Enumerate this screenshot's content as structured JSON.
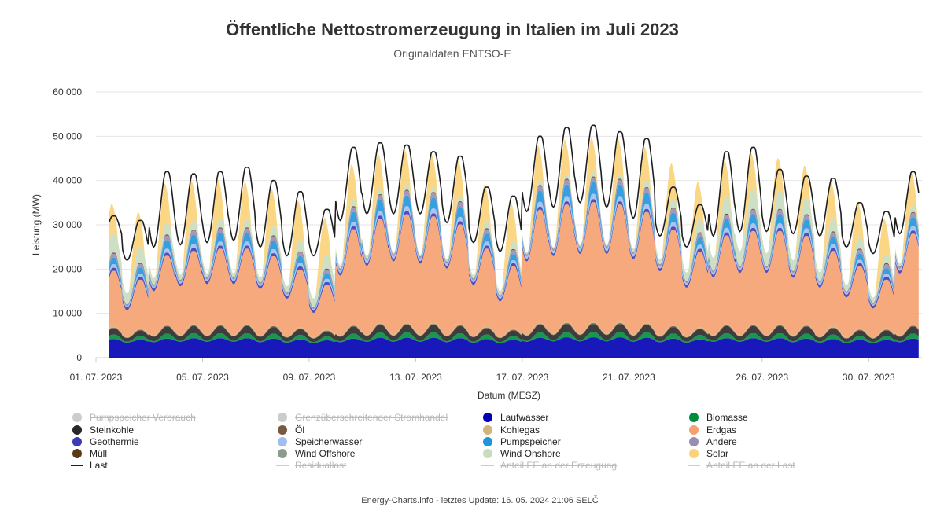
{
  "title": "Öffentliche Nettostromerzeugung in Italien im Juli 2023",
  "subtitle": "Originaldaten ENTSO-E",
  "footer": "Energy-Charts.info - letztes Update: 16. 05. 2024 21:06 SELČ",
  "chart_data": {
    "type": "area",
    "stacked": true,
    "xlabel": "Datum (MESZ)",
    "ylabel": "Leistung (MW)",
    "ylim": [
      0,
      60000
    ],
    "yticks": [
      0,
      10000,
      20000,
      30000,
      40000,
      50000,
      60000
    ],
    "ytick_labels": [
      "0",
      "10 000",
      "20 000",
      "30 000",
      "40 000",
      "50 000",
      "60 000"
    ],
    "xlim": [
      "2023-07-01",
      "2023-08-01"
    ],
    "xticks": [
      "2023-07-01",
      "2023-07-05",
      "2023-07-09",
      "2023-07-13",
      "2023-07-17",
      "2023-07-21",
      "2023-07-26",
      "2023-07-30"
    ],
    "xtick_labels": [
      "01. 07. 2023",
      "05. 07. 2023",
      "09. 07. 2023",
      "13. 07. 2023",
      "17. 07. 2023",
      "21. 07. 2023",
      "26. 07. 2023",
      "30. 07. 2023"
    ],
    "grid": true,
    "legend_position": "bottom",
    "resolution": "daily min / max (approximate)",
    "days": [
      "2023-07-01",
      "2023-07-02",
      "2023-07-03",
      "2023-07-04",
      "2023-07-05",
      "2023-07-06",
      "2023-07-07",
      "2023-07-08",
      "2023-07-09",
      "2023-07-10",
      "2023-07-11",
      "2023-07-12",
      "2023-07-13",
      "2023-07-14",
      "2023-07-15",
      "2023-07-16",
      "2023-07-17",
      "2023-07-18",
      "2023-07-19",
      "2023-07-20",
      "2023-07-21",
      "2023-07-22",
      "2023-07-23",
      "2023-07-24",
      "2023-07-25",
      "2023-07-26",
      "2023-07-27",
      "2023-07-28",
      "2023-07-29",
      "2023-07-30",
      "2023-07-31"
    ],
    "series": [
      {
        "name": "Pumpspeicher Verbrauch",
        "color": "#c8c8c8",
        "visible": false
      },
      {
        "name": "Grenzüberschreitender Stromhandel",
        "color": "#c8c8c8",
        "visible": false
      },
      {
        "name": "Laufwasser",
        "color": "#0000b4",
        "visible": true,
        "min": [
          3500,
          3400,
          3500,
          3600,
          3600,
          3600,
          3500,
          3400,
          3300,
          3500,
          3600,
          3600,
          3600,
          3500,
          3400,
          3300,
          3600,
          3700,
          3700,
          3700,
          3600,
          3500,
          3400,
          3600,
          3600,
          3600,
          3500,
          3400,
          3300,
          3300,
          3500
        ],
        "max": [
          4200,
          4000,
          4300,
          4400,
          4400,
          4400,
          4300,
          4100,
          3900,
          4300,
          4500,
          4500,
          4500,
          4400,
          4200,
          4000,
          4500,
          4600,
          4600,
          4600,
          4500,
          4300,
          4100,
          4400,
          4400,
          4400,
          4300,
          4200,
          4000,
          4000,
          4300
        ]
      },
      {
        "name": "Biomasse",
        "color": "#008c3c",
        "visible": true,
        "min": [
          200,
          200,
          200,
          200,
          200,
          200,
          200,
          200,
          200,
          200,
          200,
          200,
          200,
          200,
          200,
          200,
          200,
          200,
          200,
          200,
          200,
          200,
          200,
          200,
          200,
          200,
          200,
          200,
          200,
          200,
          200
        ],
        "max": [
          1000,
          900,
          1100,
          1100,
          1100,
          1100,
          1100,
          1000,
          900,
          1100,
          1200,
          1200,
          1200,
          1100,
          1000,
          900,
          1200,
          1200,
          1200,
          1200,
          1200,
          1100,
          1000,
          1100,
          1100,
          1100,
          1100,
          1000,
          900,
          900,
          1100
        ]
      },
      {
        "name": "Steinkohle",
        "color": "#282828",
        "visible": true,
        "min": [
          900,
          800,
          1000,
          1000,
          1000,
          1000,
          1000,
          900,
          800,
          1000,
          1100,
          1100,
          1100,
          1100,
          1000,
          900,
          1100,
          1200,
          1200,
          1200,
          1100,
          1000,
          900,
          1000,
          1000,
          1000,
          1000,
          900,
          800,
          800,
          1000
        ],
        "max": [
          1400,
          1200,
          1600,
          1600,
          1600,
          1600,
          1500,
          1300,
          1100,
          1600,
          1700,
          1700,
          1700,
          1600,
          1400,
          1200,
          1700,
          1800,
          1800,
          1800,
          1700,
          1500,
          1300,
          1600,
          1600,
          1600,
          1600,
          1400,
          1200,
          1200,
          1600
        ]
      },
      {
        "name": "Öl",
        "color": "#785a41",
        "visible": true,
        "min": [
          100,
          100,
          100,
          100,
          100,
          100,
          100,
          100,
          100,
          100,
          100,
          100,
          100,
          100,
          100,
          100,
          100,
          100,
          100,
          100,
          100,
          100,
          100,
          100,
          100,
          100,
          100,
          100,
          100,
          100,
          100
        ],
        "max": [
          200,
          200,
          200,
          200,
          200,
          200,
          200,
          200,
          200,
          200,
          200,
          200,
          200,
          200,
          200,
          200,
          200,
          200,
          200,
          200,
          200,
          200,
          200,
          200,
          200,
          200,
          200,
          200,
          200,
          200,
          200
        ]
      },
      {
        "name": "Kohlegas",
        "color": "#d2b478",
        "visible": true,
        "min": [
          200,
          200,
          200,
          200,
          200,
          200,
          200,
          200,
          200,
          200,
          200,
          200,
          200,
          200,
          200,
          200,
          200,
          200,
          200,
          200,
          200,
          200,
          200,
          200,
          200,
          200,
          200,
          200,
          200,
          200,
          200
        ],
        "max": [
          300,
          300,
          300,
          300,
          300,
          300,
          300,
          300,
          300,
          300,
          300,
          300,
          300,
          300,
          300,
          300,
          300,
          300,
          300,
          300,
          300,
          300,
          300,
          300,
          300,
          300,
          300,
          300,
          300,
          300,
          300
        ]
      },
      {
        "name": "Erdgas",
        "color": "#f5a06e",
        "visible": true,
        "min": [
          7500,
          6000,
          10000,
          11000,
          11500,
          11500,
          10500,
          8500,
          5500,
          13500,
          15500,
          16500,
          16000,
          15000,
          11500,
          8000,
          16500,
          17500,
          18000,
          18000,
          17000,
          14500,
          11000,
          13000,
          14000,
          14000,
          13000,
          11000,
          9000,
          6500,
          14000
        ],
        "max": [
          12500,
          11000,
          15500,
          16500,
          17000,
          17000,
          15500,
          13000,
          10000,
          21500,
          23500,
          24500,
          24000,
          22500,
          17500,
          14000,
          25500,
          26500,
          27000,
          26500,
          25000,
          21500,
          17000,
          20000,
          21000,
          21000,
          20000,
          17000,
          14000,
          11000,
          20500
        ]
      },
      {
        "name": "Geothermie",
        "color": "#3c3cb4",
        "visible": true,
        "min": [
          600,
          600,
          600,
          600,
          600,
          600,
          600,
          600,
          600,
          600,
          600,
          600,
          600,
          600,
          600,
          600,
          600,
          600,
          600,
          600,
          600,
          600,
          600,
          600,
          600,
          600,
          600,
          600,
          600,
          600,
          600
        ],
        "max": [
          700,
          700,
          700,
          700,
          700,
          700,
          700,
          700,
          700,
          700,
          700,
          700,
          700,
          700,
          700,
          700,
          700,
          700,
          700,
          700,
          700,
          700,
          700,
          700,
          700,
          700,
          700,
          700,
          700,
          700,
          700
        ]
      },
      {
        "name": "Speicherwasser",
        "color": "#a0bef0",
        "visible": true,
        "min": [
          300,
          250,
          400,
          400,
          400,
          400,
          400,
          300,
          250,
          500,
          550,
          550,
          550,
          500,
          400,
          300,
          550,
          600,
          600,
          600,
          550,
          500,
          400,
          450,
          450,
          450,
          450,
          400,
          300,
          250,
          450
        ],
        "max": [
          800,
          700,
          900,
          900,
          900,
          900,
          900,
          800,
          700,
          1000,
          1100,
          1100,
          1100,
          1000,
          900,
          700,
          1100,
          1200,
          1200,
          1200,
          1100,
          1000,
          900,
          1000,
          1000,
          1000,
          1000,
          900,
          800,
          700,
          1000
        ]
      },
      {
        "name": "Pumpspeicher",
        "color": "#1e96dc",
        "visible": true,
        "min": [
          0,
          0,
          0,
          0,
          0,
          0,
          0,
          0,
          0,
          0,
          0,
          0,
          0,
          0,
          0,
          0,
          0,
          0,
          0,
          0,
          0,
          0,
          0,
          0,
          0,
          0,
          0,
          0,
          0,
          0,
          0
        ],
        "max": [
          1500,
          1300,
          2000,
          2000,
          2000,
          2000,
          1900,
          1500,
          1200,
          2200,
          2400,
          2400,
          2400,
          2200,
          1800,
          1400,
          2500,
          2600,
          2600,
          2600,
          2500,
          2100,
          1700,
          2000,
          2100,
          2100,
          2000,
          1700,
          1400,
          1200,
          2000
        ]
      },
      {
        "name": "Andere",
        "color": "#9b8cb4",
        "visible": true,
        "min": [
          300,
          300,
          300,
          300,
          300,
          300,
          300,
          300,
          300,
          300,
          300,
          300,
          300,
          300,
          300,
          300,
          300,
          300,
          300,
          300,
          300,
          300,
          300,
          300,
          300,
          300,
          300,
          300,
          300,
          300,
          300
        ],
        "max": [
          900,
          900,
          1000,
          1000,
          1000,
          1000,
          1000,
          900,
          900,
          1100,
          1100,
          1100,
          1100,
          1100,
          1000,
          900,
          1100,
          1100,
          1100,
          1100,
          1100,
          1000,
          900,
          1000,
          1000,
          1000,
          1000,
          900,
          900,
          900,
          1000
        ]
      },
      {
        "name": "Müll",
        "color": "#5a3c14",
        "visible": true,
        "min": [
          100,
          100,
          100,
          100,
          100,
          100,
          100,
          100,
          100,
          100,
          100,
          100,
          100,
          100,
          100,
          100,
          100,
          100,
          100,
          100,
          100,
          100,
          100,
          100,
          100,
          100,
          100,
          100,
          100,
          100,
          100
        ],
        "max": [
          200,
          200,
          200,
          200,
          200,
          200,
          200,
          200,
          200,
          200,
          200,
          200,
          200,
          200,
          200,
          200,
          200,
          200,
          200,
          200,
          200,
          200,
          200,
          200,
          200,
          200,
          200,
          200,
          200,
          200,
          200
        ]
      },
      {
        "name": "Wind Offshore",
        "color": "#8c9b8c",
        "visible": true,
        "min": [
          0,
          0,
          0,
          0,
          0,
          0,
          0,
          0,
          0,
          0,
          0,
          0,
          0,
          0,
          0,
          0,
          0,
          0,
          0,
          0,
          0,
          0,
          0,
          0,
          0,
          0,
          0,
          0,
          0,
          0,
          0
        ],
        "max": [
          20,
          20,
          20,
          20,
          20,
          20,
          20,
          20,
          20,
          20,
          20,
          20,
          20,
          20,
          20,
          20,
          20,
          20,
          20,
          20,
          20,
          20,
          20,
          20,
          20,
          20,
          20,
          20,
          20,
          20,
          20
        ]
      },
      {
        "name": "Wind Onshore",
        "color": "#c8dcbe",
        "visible": true,
        "min": [
          3500,
          2500,
          1500,
          1200,
          1000,
          1000,
          1200,
          1500,
          2000,
          800,
          600,
          500,
          500,
          600,
          800,
          1000,
          500,
          400,
          400,
          500,
          800,
          1200,
          2000,
          3000,
          3500,
          3000,
          2500,
          2000,
          1500,
          1200,
          800
        ],
        "max": [
          4500,
          3500,
          2500,
          2000,
          1800,
          1800,
          2000,
          2500,
          3000,
          1500,
          1200,
          1000,
          1000,
          1200,
          1500,
          1800,
          1000,
          900,
          900,
          1000,
          1500,
          2000,
          3000,
          4000,
          4500,
          4000,
          3500,
          3000,
          2500,
          2000,
          1500
        ]
      },
      {
        "name": "Solar",
        "color": "#fad278",
        "visible": true,
        "min": [
          0,
          0,
          0,
          0,
          0,
          0,
          0,
          0,
          0,
          0,
          0,
          0,
          0,
          0,
          0,
          0,
          0,
          0,
          0,
          0,
          0,
          0,
          0,
          0,
          0,
          0,
          0,
          0,
          0,
          0,
          0
        ],
        "max": [
          7000,
          8500,
          9500,
          9500,
          9500,
          9000,
          9000,
          9500,
          9000,
          8500,
          8500,
          8500,
          8000,
          8500,
          9000,
          9000,
          8500,
          8500,
          8500,
          8500,
          8000,
          8500,
          9000,
          8500,
          8500,
          8000,
          8000,
          8500,
          8500,
          8500,
          8000
        ]
      },
      {
        "name": "Last",
        "color": "#1e1e1e",
        "visible": true,
        "line": true,
        "min": [
          25500,
          22000,
          25000,
          25500,
          26000,
          26500,
          25000,
          23000,
          23000,
          31000,
          32500,
          32500,
          32500,
          30500,
          26000,
          24000,
          33000,
          34000,
          35000,
          34000,
          31500,
          27500,
          25000,
          27500,
          28500,
          28500,
          28000,
          27500,
          25000,
          23500,
          28000
        ],
        "max": [
          32000,
          31000,
          42000,
          41500,
          42000,
          43000,
          40000,
          37500,
          33500,
          47500,
          48500,
          48000,
          46500,
          45500,
          38500,
          36500,
          50000,
          52000,
          52500,
          51000,
          49500,
          38500,
          34500,
          46500,
          47500,
          42500,
          41000,
          40500,
          35000,
          33000,
          42000
        ]
      },
      {
        "name": "Residuallast",
        "color": "#c8c8c8",
        "visible": false,
        "line": true
      },
      {
        "name": "Anteil EE an der Erzeugung",
        "color": "#c8c8c8",
        "visible": false,
        "line": true
      },
      {
        "name": "Anteil EE an der Last",
        "color": "#c8c8c8",
        "visible": false,
        "line": true
      }
    ]
  }
}
